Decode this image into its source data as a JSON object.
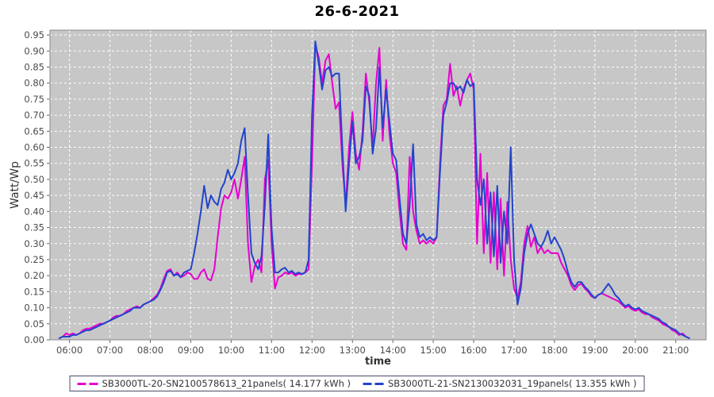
{
  "title": "26-6-2021",
  "chart_data": {
    "type": "line",
    "title": "26-6-2021",
    "xlabel": "time",
    "ylabel": "Watt/Wp",
    "plot_bg": "#c7c7c7",
    "grid": "white dashed, on",
    "legend_position": "bottom",
    "ylim": [
      0,
      0.965
    ],
    "x_domain_minutes": [
      331,
      1305
    ],
    "x_ticks": [
      "06:00",
      "07:00",
      "08:00",
      "09:00",
      "10:00",
      "11:00",
      "12:00",
      "13:00",
      "14:00",
      "15:00",
      "16:00",
      "17:00",
      "18:00",
      "19:00",
      "20:00",
      "21:00"
    ],
    "y_ticks": [
      0.0,
      0.05,
      0.1,
      0.15,
      0.2,
      0.25,
      0.3,
      0.35,
      0.4,
      0.45,
      0.5,
      0.55,
      0.6,
      0.65,
      0.7,
      0.75,
      0.8,
      0.85,
      0.9,
      0.95
    ],
    "start_time": "05:45",
    "start_minute": 345,
    "sample_interval_min": 5,
    "series": [
      {
        "name": "SB3000TL-20-SN2100578613_21panels( 14.177 kWh )",
        "color": "#e600d0",
        "values": [
          0.005,
          0.01,
          0.02,
          0.015,
          0.02,
          0.015,
          0.02,
          0.03,
          0.035,
          0.035,
          0.04,
          0.045,
          0.05,
          0.05,
          0.055,
          0.06,
          0.07,
          0.075,
          0.075,
          0.08,
          0.09,
          0.095,
          0.1,
          0.105,
          0.1,
          0.11,
          0.115,
          0.12,
          0.13,
          0.14,
          0.16,
          0.19,
          0.215,
          0.22,
          0.2,
          0.21,
          0.195,
          0.2,
          0.21,
          0.205,
          0.19,
          0.19,
          0.21,
          0.22,
          0.19,
          0.185,
          0.22,
          0.32,
          0.41,
          0.45,
          0.44,
          0.46,
          0.5,
          0.44,
          0.5,
          0.57,
          0.3,
          0.18,
          0.23,
          0.25,
          0.21,
          0.5,
          0.56,
          0.3,
          0.16,
          0.195,
          0.2,
          0.21,
          0.205,
          0.21,
          0.2,
          0.205,
          0.205,
          0.21,
          0.22,
          0.55,
          0.92,
          0.88,
          0.8,
          0.87,
          0.89,
          0.8,
          0.72,
          0.74,
          0.55,
          0.42,
          0.6,
          0.71,
          0.58,
          0.53,
          0.65,
          0.83,
          0.74,
          0.6,
          0.8,
          0.91,
          0.62,
          0.81,
          0.64,
          0.55,
          0.52,
          0.4,
          0.3,
          0.28,
          0.57,
          0.4,
          0.34,
          0.3,
          0.31,
          0.3,
          0.31,
          0.3,
          0.32,
          0.55,
          0.73,
          0.75,
          0.86,
          0.76,
          0.79,
          0.73,
          0.78,
          0.81,
          0.83,
          0.78,
          0.3,
          0.58,
          0.27,
          0.52,
          0.24,
          0.46,
          0.22,
          0.44,
          0.2,
          0.43,
          0.25,
          0.16,
          0.13,
          0.18,
          0.3,
          0.355,
          0.29,
          0.32,
          0.27,
          0.29,
          0.27,
          0.28,
          0.27,
          0.27,
          0.27,
          0.24,
          0.22,
          0.2,
          0.17,
          0.155,
          0.17,
          0.175,
          0.16,
          0.15,
          0.135,
          0.13,
          0.14,
          0.145,
          0.14,
          0.135,
          0.13,
          0.125,
          0.12,
          0.11,
          0.1,
          0.105,
          0.095,
          0.09,
          0.095,
          0.085,
          0.08,
          0.08,
          0.07,
          0.065,
          0.06,
          0.05,
          0.045,
          0.04,
          0.03,
          0.025,
          0.015,
          0.02,
          0.01,
          0.005
        ]
      },
      {
        "name": "SB3000TL-21-SN2130032031_19panels( 13.355 kWh )",
        "color": "#2244cc",
        "values": [
          0.005,
          0.01,
          0.01,
          0.01,
          0.015,
          0.015,
          0.02,
          0.025,
          0.03,
          0.03,
          0.035,
          0.04,
          0.045,
          0.05,
          0.055,
          0.06,
          0.065,
          0.07,
          0.075,
          0.08,
          0.085,
          0.09,
          0.1,
          0.1,
          0.1,
          0.11,
          0.115,
          0.12,
          0.125,
          0.135,
          0.155,
          0.18,
          0.21,
          0.215,
          0.2,
          0.205,
          0.195,
          0.21,
          0.215,
          0.22,
          0.27,
          0.33,
          0.4,
          0.48,
          0.41,
          0.45,
          0.43,
          0.42,
          0.47,
          0.49,
          0.53,
          0.5,
          0.52,
          0.55,
          0.62,
          0.66,
          0.45,
          0.27,
          0.24,
          0.22,
          0.26,
          0.42,
          0.64,
          0.35,
          0.21,
          0.21,
          0.22,
          0.225,
          0.21,
          0.215,
          0.205,
          0.21,
          0.205,
          0.21,
          0.25,
          0.7,
          0.93,
          0.86,
          0.78,
          0.84,
          0.85,
          0.82,
          0.83,
          0.83,
          0.6,
          0.4,
          0.55,
          0.68,
          0.55,
          0.57,
          0.62,
          0.79,
          0.76,
          0.58,
          0.66,
          0.85,
          0.66,
          0.78,
          0.68,
          0.58,
          0.56,
          0.44,
          0.33,
          0.3,
          0.42,
          0.61,
          0.36,
          0.32,
          0.33,
          0.31,
          0.32,
          0.31,
          0.32,
          0.52,
          0.7,
          0.74,
          0.8,
          0.8,
          0.78,
          0.79,
          0.77,
          0.81,
          0.79,
          0.8,
          0.5,
          0.42,
          0.5,
          0.3,
          0.46,
          0.26,
          0.48,
          0.24,
          0.4,
          0.3,
          0.6,
          0.25,
          0.11,
          0.16,
          0.27,
          0.33,
          0.36,
          0.33,
          0.3,
          0.29,
          0.31,
          0.34,
          0.3,
          0.32,
          0.3,
          0.28,
          0.25,
          0.21,
          0.18,
          0.165,
          0.18,
          0.18,
          0.165,
          0.155,
          0.14,
          0.13,
          0.14,
          0.145,
          0.16,
          0.175,
          0.16,
          0.14,
          0.13,
          0.115,
          0.105,
          0.11,
          0.1,
          0.095,
          0.1,
          0.09,
          0.085,
          0.08,
          0.075,
          0.07,
          0.065,
          0.055,
          0.05,
          0.04,
          0.035,
          0.03,
          0.02,
          0.015,
          0.01,
          0.005
        ]
      }
    ]
  }
}
